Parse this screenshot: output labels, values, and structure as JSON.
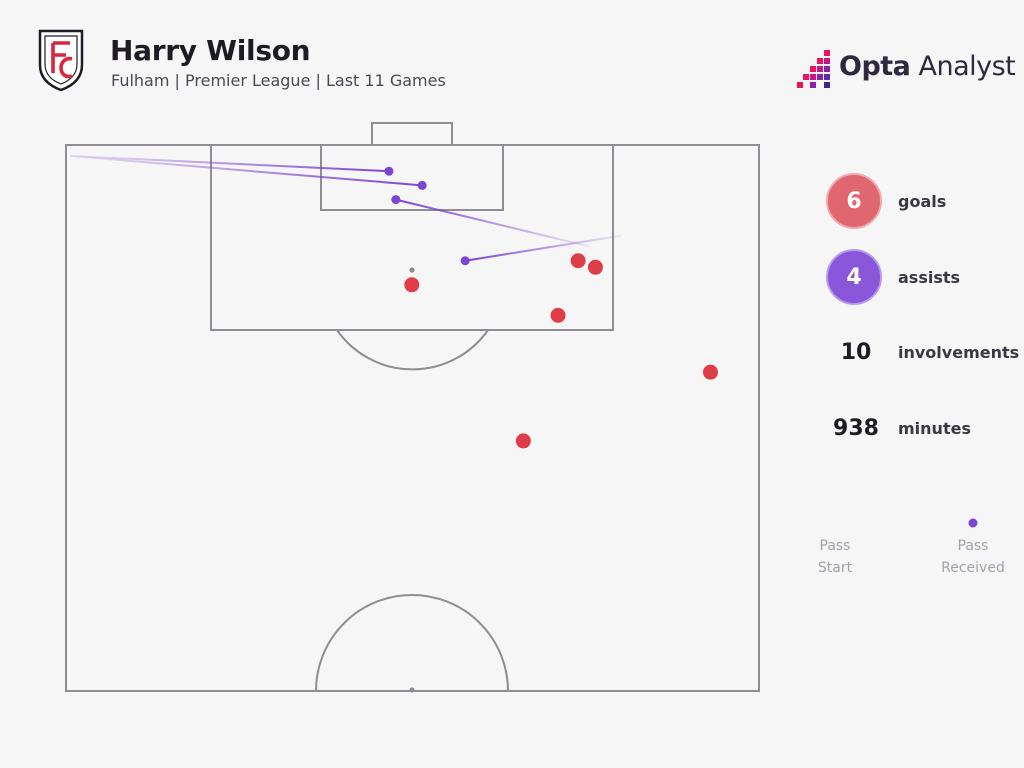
{
  "header": {
    "player_name": "Harry Wilson",
    "subtitle": "Fulham | Premier League | Last 11 Games",
    "club_crest_icon": "fulham-crest-icon",
    "brand": {
      "bold": "Opta",
      "light": " Analyst",
      "icon": "opta-logo-icon"
    }
  },
  "colors": {
    "goal": "#df3d48",
    "assist": "#7b45d6",
    "pitch_line": "#8f8c93",
    "background": "#f6f6f6"
  },
  "stats": {
    "goals": {
      "value": "6",
      "label": "goals"
    },
    "assists": {
      "value": "4",
      "label": "assists"
    },
    "involvements": {
      "value": "10",
      "label": "involvements"
    },
    "minutes": {
      "value": "938",
      "label": "minutes"
    }
  },
  "legend": {
    "start_line1": "Pass",
    "start_line2": "Start",
    "end_line1": "Pass",
    "end_line2": "Received"
  },
  "chart_data": {
    "type": "scatter",
    "x_range": [
      0,
      100
    ],
    "y_range": [
      50,
      100
    ],
    "shots": [
      {
        "x": 73.9,
        "y": 89.4,
        "outcome": "goal"
      },
      {
        "x": 76.4,
        "y": 88.8,
        "outcome": "goal"
      },
      {
        "x": 49.9,
        "y": 87.2,
        "outcome": "goal"
      },
      {
        "x": 71.0,
        "y": 84.4,
        "outcome": "goal"
      },
      {
        "x": 93.0,
        "y": 79.2,
        "outcome": "goal"
      },
      {
        "x": 66.0,
        "y": 72.9,
        "outcome": "goal"
      }
    ],
    "passes": [
      {
        "x_start": 0.6,
        "y_start": 99.0,
        "x_end": 46.6,
        "y_end": 97.6,
        "outcome": "assist"
      },
      {
        "x_start": 0.6,
        "y_start": 99.0,
        "x_end": 51.4,
        "y_end": 96.3,
        "outcome": "assist"
      },
      {
        "x_start": 75.6,
        "y_start": 90.7,
        "x_end": 47.6,
        "y_end": 95.0,
        "outcome": "assist"
      },
      {
        "x_start": 80.1,
        "y_start": 91.7,
        "x_end": 57.6,
        "y_end": 89.4,
        "outcome": "assist"
      }
    ]
  }
}
